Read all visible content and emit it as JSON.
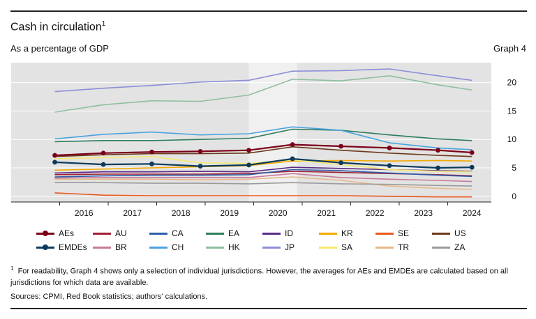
{
  "header": {
    "title": "Cash in circulation",
    "title_sup": "1",
    "subtitle": "As a percentage of GDP",
    "graph_label": "Graph 4"
  },
  "chart_data": {
    "type": "line",
    "x": [
      2015.9,
      2016.9,
      2017.9,
      2018.9,
      2019.9,
      2020.8,
      2021.8,
      2022.8,
      2023.8,
      2024.5
    ],
    "xticks": [
      "2016",
      "2017",
      "2018",
      "2019",
      "2020",
      "2021",
      "2022",
      "2023",
      "2024"
    ],
    "ylim": [
      -1,
      23.5
    ],
    "yticks": [
      0,
      5,
      10,
      15,
      20
    ],
    "y_axis_side": "right",
    "grid": "horizontal",
    "background": "#e3e3e3",
    "highlight_band": {
      "from": 2019.9,
      "to": 2020.9,
      "color": "#f0f0f0"
    },
    "series": [
      {
        "name": "AEs",
        "color": "#7a0019",
        "width": 2.2,
        "markers": true,
        "values": [
          7.2,
          7.6,
          7.8,
          7.9,
          8.1,
          9.1,
          8.8,
          8.5,
          8.1,
          7.7
        ]
      },
      {
        "name": "AU",
        "color": "#a31f34",
        "width": 1.6,
        "markers": false,
        "values": [
          3.8,
          3.9,
          3.9,
          3.9,
          4.0,
          4.4,
          4.2,
          4.0,
          3.8,
          3.6
        ]
      },
      {
        "name": "CA",
        "color": "#2b5fa8",
        "width": 1.6,
        "markers": false,
        "values": [
          3.4,
          3.6,
          3.7,
          3.7,
          3.8,
          4.7,
          4.5,
          4.1,
          3.7,
          3.5
        ]
      },
      {
        "name": "EA",
        "color": "#2e7d5b",
        "width": 1.6,
        "markers": false,
        "values": [
          9.6,
          9.8,
          9.8,
          10.0,
          10.2,
          11.8,
          11.6,
          10.8,
          10.1,
          9.8
        ]
      },
      {
        "name": "ID",
        "color": "#5b2a86",
        "width": 1.6,
        "markers": false,
        "values": [
          4.1,
          4.3,
          4.3,
          4.4,
          4.3,
          5.1,
          4.9,
          4.7,
          4.5,
          4.4
        ]
      },
      {
        "name": "KR",
        "color": "#f2a900",
        "width": 1.6,
        "markers": false,
        "values": [
          4.6,
          4.8,
          5.0,
          5.2,
          5.4,
          6.2,
          6.3,
          6.2,
          6.3,
          6.2
        ]
      },
      {
        "name": "SE",
        "color": "#e8581c",
        "width": 1.6,
        "markers": false,
        "values": [
          0.6,
          0.2,
          0.1,
          0.1,
          0.1,
          0.1,
          0.1,
          0.0,
          -0.1,
          -0.1
        ]
      },
      {
        "name": "US",
        "color": "#6b3a1a",
        "width": 1.6,
        "markers": false,
        "values": [
          7.0,
          7.3,
          7.5,
          7.5,
          7.6,
          8.7,
          8.1,
          7.6,
          7.2,
          7.0
        ]
      },
      {
        "name": "EMDEs",
        "color": "#0b3a5d",
        "width": 2.2,
        "markers": true,
        "values": [
          6.0,
          5.6,
          5.7,
          5.3,
          5.5,
          6.6,
          5.9,
          5.4,
          5.0,
          5.1
        ]
      },
      {
        "name": "BR",
        "color": "#c97a9a",
        "width": 1.6,
        "markers": false,
        "values": [
          3.2,
          3.3,
          3.3,
          3.3,
          3.3,
          4.0,
          3.3,
          3.0,
          2.8,
          2.6
        ]
      },
      {
        "name": "CH",
        "color": "#4aa3df",
        "width": 1.6,
        "markers": false,
        "values": [
          10.1,
          10.9,
          11.3,
          10.8,
          11.0,
          12.2,
          11.6,
          9.4,
          8.5,
          8.2
        ]
      },
      {
        "name": "HK",
        "color": "#8fbf9f",
        "width": 1.6,
        "markers": false,
        "values": [
          14.8,
          16.1,
          16.8,
          16.7,
          17.8,
          20.6,
          20.3,
          21.2,
          19.6,
          18.7
        ]
      },
      {
        "name": "JP",
        "color": "#8d8fd8",
        "width": 1.6,
        "markers": false,
        "values": [
          18.4,
          19.0,
          19.5,
          20.1,
          20.4,
          22.0,
          22.1,
          22.4,
          21.2,
          20.4
        ]
      },
      {
        "name": "SA",
        "color": "#f5e96e",
        "width": 1.6,
        "markers": false,
        "values": [
          6.6,
          6.8,
          7.0,
          5.9,
          5.8,
          6.4,
          5.6,
          4.7,
          4.4,
          4.3
        ]
      },
      {
        "name": "TR",
        "color": "#e6b98a",
        "width": 1.6,
        "markers": false,
        "values": [
          3.0,
          3.0,
          3.0,
          2.9,
          3.0,
          3.4,
          2.8,
          1.8,
          1.4,
          1.2
        ]
      },
      {
        "name": "ZA",
        "color": "#9b9b9b",
        "width": 1.6,
        "markers": false,
        "values": [
          2.4,
          2.4,
          2.3,
          2.3,
          2.2,
          2.4,
          2.2,
          2.1,
          1.9,
          1.8
        ]
      }
    ]
  },
  "footnote": {
    "marker": "1",
    "text": "For readability, Graph 4 shows only a selection of individual jurisdictions. However, the averages for AEs and EMDEs are calculated based on all jurisdictions for which data are available."
  },
  "sources": "Sources: CPMI, Red Book statistics; authors' calculations."
}
